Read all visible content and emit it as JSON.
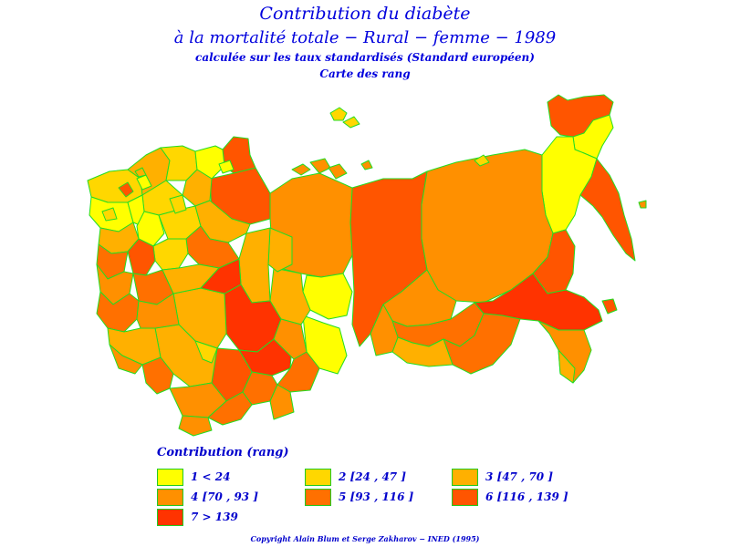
{
  "title": {
    "line1": "Contribution du diabète",
    "line2": "à la mortalité totale − Rural − femme − 1989",
    "line3": "calculée sur les taux standardisés (Standard européen)",
    "line4": "Carte des rang"
  },
  "legend": {
    "title": "Contribution (rang)",
    "items": [
      {
        "label": "1  <  24",
        "color": "#ffff00"
      },
      {
        "label": "2 [24 ,  47 ]",
        "color": "#ffd700"
      },
      {
        "label": "3 [47 ,  70 ]",
        "color": "#ffb000"
      },
      {
        "label": "4 [70 ,  93 ]",
        "color": "#ff9000"
      },
      {
        "label": "5 [93 ,  116 ]",
        "color": "#ff7000"
      },
      {
        "label": "6 [116 ,  139 ]",
        "color": "#ff5500"
      },
      {
        "label": "7  >  139",
        "color": "#ff3300"
      }
    ]
  },
  "border_color": "#22dd22",
  "copyright": "Copyright Alain Blum et Serge Zakharov − INED (1995)"
}
